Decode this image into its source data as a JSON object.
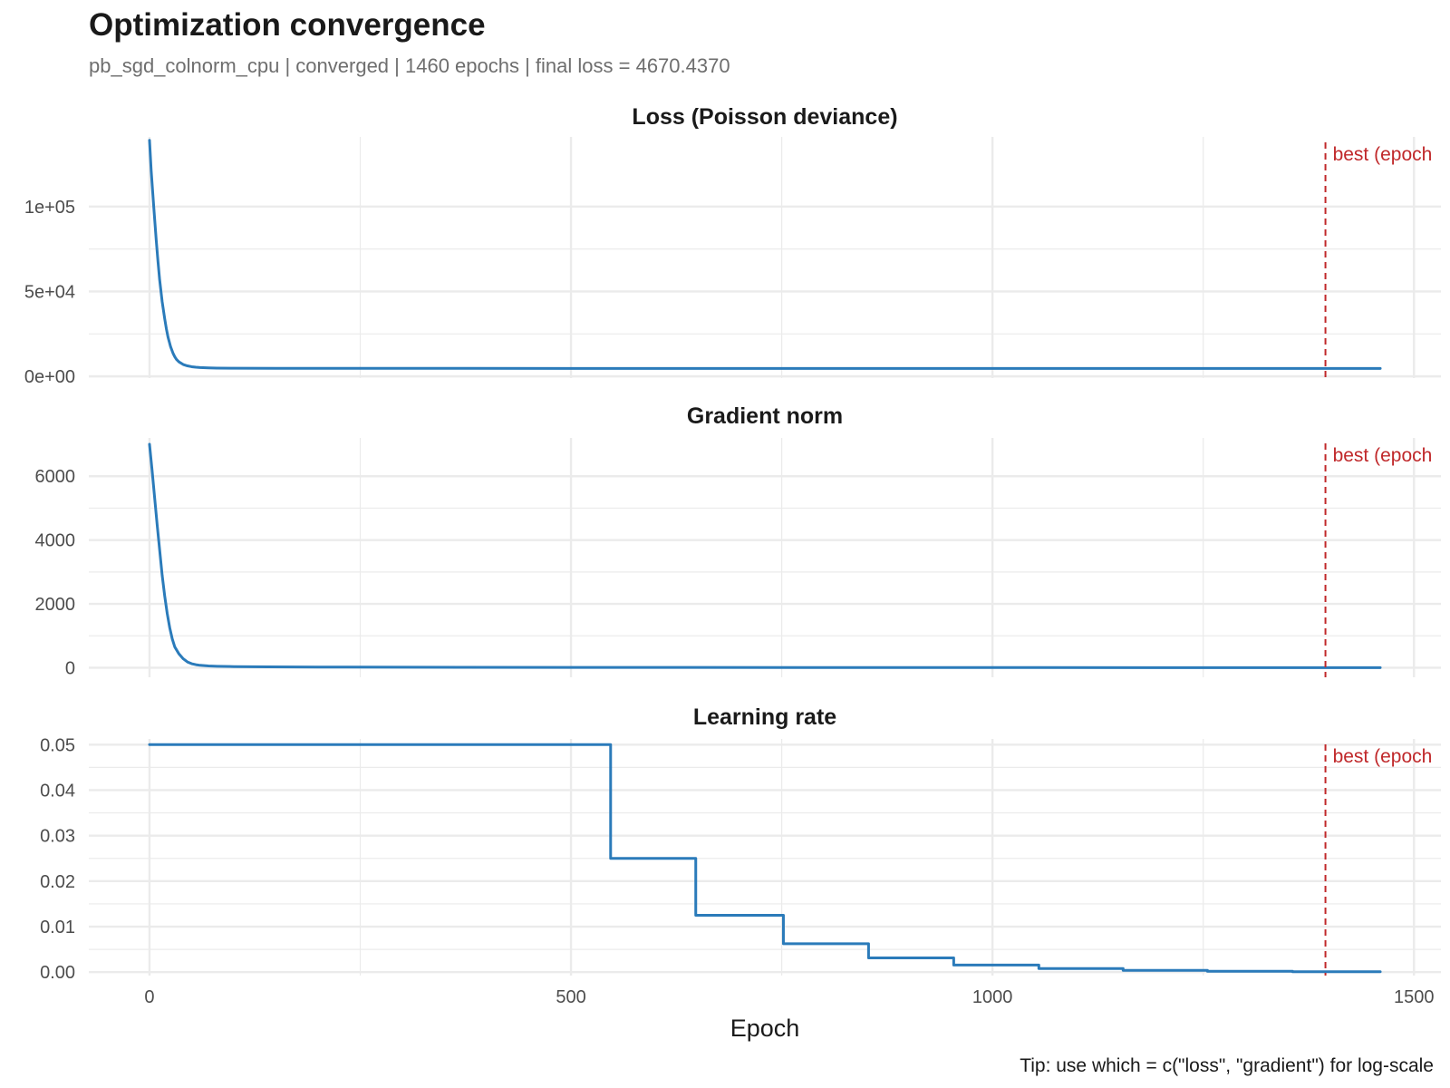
{
  "title": "Optimization convergence",
  "subtitle": "pb_sgd_colnorm_cpu | converged | 1460 epochs | final loss = 4670.4370",
  "caption": "Tip: use which = c(\"loss\", \"gradient\") for log-scale",
  "colors": {
    "series": "#2b7bba",
    "best_line": "#c0282a",
    "grid": "#ebebeb"
  },
  "chart_data": {
    "type": "line",
    "xlabel": "Epoch",
    "xlim": [
      -72,
      1532
    ],
    "x_ticks": [
      0,
      500,
      1000,
      1500
    ],
    "x_tick_labels": [
      "0",
      "500",
      "1000",
      "1500"
    ],
    "best_epoch": 1395,
    "best_label": "best (epoch",
    "panels": [
      {
        "title": "Loss (Poisson deviance)",
        "ylim": [
          -1000,
          141000
        ],
        "y_ticks": [
          0,
          50000,
          100000
        ],
        "y_tick_labels": [
          "0e+00",
          "5e+04",
          "1e+05"
        ],
        "x": [
          0,
          2,
          5,
          8,
          10,
          12,
          15,
          18,
          20,
          22,
          25,
          28,
          30,
          32,
          35,
          40,
          45,
          50,
          55,
          60,
          70,
          80,
          100,
          150,
          300,
          500,
          800,
          1000,
          1200,
          1460
        ],
        "y": [
          139000,
          121000,
          100000,
          80000,
          68000,
          57000,
          44000,
          34000,
          28000,
          23000,
          17500,
          13500,
          11500,
          10000,
          8500,
          7000,
          6200,
          5700,
          5400,
          5200,
          5000,
          4900,
          4800,
          4750,
          4720,
          4700,
          4690,
          4680,
          4675,
          4670.437
        ]
      },
      {
        "title": "Gradient norm",
        "ylim": [
          -300,
          7200
        ],
        "y_ticks": [
          0,
          2000,
          4000,
          6000
        ],
        "y_tick_labels": [
          "0",
          "2000",
          "4000",
          "6000"
        ],
        "x": [
          0,
          3,
          6,
          9,
          12,
          15,
          18,
          21,
          24,
          27,
          30,
          35,
          40,
          45,
          50,
          55,
          60,
          70,
          80,
          100,
          140,
          200,
          300,
          500,
          800,
          1000,
          1200,
          1460
        ],
        "y": [
          7000,
          6200,
          5350,
          4500,
          3700,
          2900,
          2250,
          1700,
          1250,
          900,
          650,
          430,
          280,
          180,
          125,
          95,
          75,
          55,
          45,
          35,
          25,
          20,
          15,
          10,
          6,
          4,
          3,
          2
        ]
      },
      {
        "title": "Learning rate",
        "ylim": [
          -0.00075,
          0.05125
        ],
        "y_ticks": [
          0,
          0.01,
          0.02,
          0.03,
          0.04,
          0.05
        ],
        "y_tick_labels": [
          "0.00",
          "0.01",
          "0.02",
          "0.03",
          "0.04",
          "0.05"
        ],
        "x": [
          0,
          547,
          547,
          648,
          648,
          752,
          752,
          853,
          853,
          954,
          954,
          1055,
          1055,
          1155,
          1155,
          1255,
          1255,
          1356,
          1356,
          1460
        ],
        "y": [
          0.05,
          0.05,
          0.025,
          0.025,
          0.0125,
          0.0125,
          0.00625,
          0.00625,
          0.003125,
          0.003125,
          0.0015625,
          0.0015625,
          0.00078125,
          0.00078125,
          0.000390625,
          0.000390625,
          0.0001953125,
          0.0001953125,
          9.765625e-05,
          9.765625e-05
        ]
      }
    ]
  }
}
